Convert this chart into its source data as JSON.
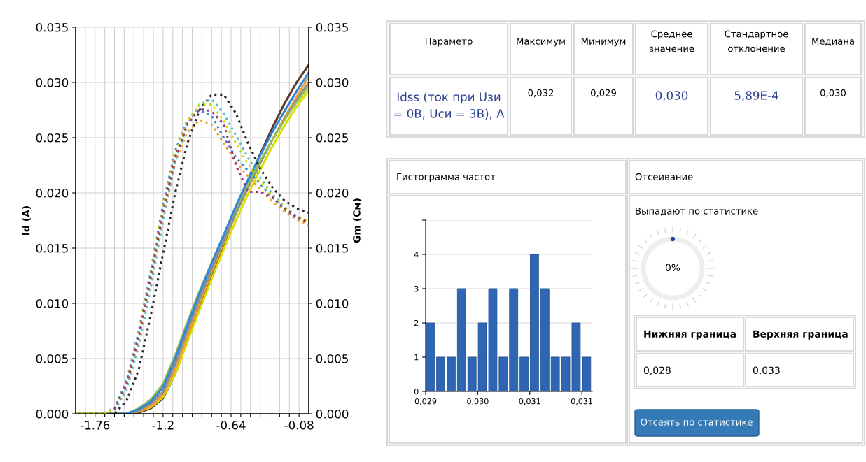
{
  "chart_data": [
    {
      "type": "line",
      "ylabel": "Id (A)",
      "y2label": "Gm (См)",
      "grid": true,
      "marker": "none",
      "x": [
        -1.92,
        -1.7,
        -1.6,
        -1.5,
        -1.4,
        -1.3,
        -1.2,
        -1.1,
        -1.0,
        -0.9,
        -0.8,
        -0.7,
        -0.6,
        -0.5,
        -0.4,
        -0.3,
        -0.2,
        -0.1,
        0
      ],
      "xlim": [
        -1.92,
        0
      ],
      "xticks": [
        {
          "value": -1.84,
          "label": null
        },
        {
          "value": -1.76,
          "label": "-1.76"
        },
        {
          "value": -1.68,
          "label": null
        },
        {
          "value": -1.6,
          "label": null
        },
        {
          "value": -1.52,
          "label": null
        },
        {
          "value": -1.44,
          "label": null
        },
        {
          "value": -1.36,
          "label": null
        },
        {
          "value": -1.28,
          "label": null
        },
        {
          "value": -1.2,
          "label": "-1.2"
        },
        {
          "value": -1.12,
          "label": null
        },
        {
          "value": -1.04,
          "label": null
        },
        {
          "value": -0.96,
          "label": null
        },
        {
          "value": -0.88,
          "label": null
        },
        {
          "value": -0.8,
          "label": null
        },
        {
          "value": -0.72,
          "label": null
        },
        {
          "value": -0.64,
          "label": "-0.64"
        },
        {
          "value": -0.56,
          "label": null
        },
        {
          "value": -0.48,
          "label": null
        },
        {
          "value": -0.4,
          "label": null
        },
        {
          "value": -0.32,
          "label": null
        },
        {
          "value": -0.24,
          "label": null
        },
        {
          "value": -0.16,
          "label": null
        },
        {
          "value": -0.08,
          "label": "-0.08"
        }
      ],
      "ylim": [
        0,
        0.035
      ],
      "yticks": [
        {
          "value": 0,
          "label": "0.000"
        },
        {
          "value": 0.005,
          "label": "0.005"
        },
        {
          "value": 0.01,
          "label": "0.010"
        },
        {
          "value": 0.015,
          "label": "0.015"
        },
        {
          "value": 0.02,
          "label": "0.020"
        },
        {
          "value": 0.025,
          "label": "0.025"
        },
        {
          "value": 0.03,
          "label": "0.030"
        },
        {
          "value": 0.035,
          "label": "0.035"
        }
      ],
      "y2lim": [
        0,
        0.035
      ],
      "y2ticks": [
        {
          "value": 0,
          "label": "0.000"
        },
        {
          "value": 0.005,
          "label": "0.005"
        },
        {
          "value": 0.01,
          "label": "0.010"
        },
        {
          "value": 0.015,
          "label": "0.015"
        },
        {
          "value": 0.02,
          "label": "0.020"
        },
        {
          "value": 0.025,
          "label": "0.025"
        },
        {
          "value": 0.03,
          "label": "0.030"
        },
        {
          "value": 0.035,
          "label": "0.035"
        }
      ],
      "series": [
        {
          "color": "#5b3a29",
          "line_style": "solid",
          "values": [
            0,
            0,
            0,
            0,
            0.0001,
            0.0005,
            0.0014,
            0.0036,
            0.0066,
            0.0096,
            0.0125,
            0.0154,
            0.0182,
            0.0209,
            0.0235,
            0.0259,
            0.0281,
            0.03,
            0.0316
          ]
        },
        {
          "color": "#d4e000",
          "line_style": "solid",
          "values": [
            0,
            0,
            0,
            0,
            0.0002,
            0.0006,
            0.0015,
            0.0036,
            0.0065,
            0.0094,
            0.0122,
            0.0149,
            0.0175,
            0.0199,
            0.0221,
            0.0242,
            0.0261,
            0.0278,
            0.0293
          ]
        },
        {
          "color": "#f0a030",
          "line_style": "solid",
          "values": [
            null,
            null,
            null,
            0,
            0.0002,
            0.0007,
            0.0017,
            0.004,
            0.007,
            0.01,
            0.0128,
            0.0155,
            0.0181,
            0.0205,
            0.0227,
            0.0248,
            0.0268,
            0.0287,
            0.0305
          ]
        },
        {
          "color": "#8c8c8c",
          "line_style": "solid",
          "values": [
            0,
            0,
            0,
            0,
            0.0003,
            0.0009,
            0.002,
            0.0045,
            0.0075,
            0.0104,
            0.0131,
            0.0157,
            0.0182,
            0.0205,
            0.0227,
            0.0248,
            0.0267,
            0.0284,
            0.03
          ]
        },
        {
          "color": "#9bbb59",
          "line_style": "solid",
          "values": [
            0,
            0,
            0,
            0,
            0.0005,
            0.0013,
            0.0027,
            0.0053,
            0.0083,
            0.0111,
            0.0137,
            0.0162,
            0.0186,
            0.0208,
            0.0229,
            0.0248,
            0.0266,
            0.0282,
            0.0297
          ]
        },
        {
          "color": "#2e86d6",
          "line_style": "solid",
          "values": [
            null,
            null,
            0,
            0,
            0.0004,
            0.0011,
            0.0024,
            0.005,
            0.008,
            0.0109,
            0.0136,
            0.0162,
            0.0188,
            0.0212,
            0.0234,
            0.0255,
            0.0274,
            0.0292,
            0.0309
          ]
        },
        {
          "color": "#262626",
          "line_style": "dotted",
          "axis": "y2",
          "values": [
            0,
            0,
            0,
            0.0012,
            0.004,
            0.009,
            0.0145,
            0.02,
            0.0245,
            0.0275,
            0.0289,
            0.0289,
            0.0272,
            0.0245,
            0.0222,
            0.0205,
            0.0193,
            0.0186,
            0.0182
          ]
        },
        {
          "color": "#2e86d6",
          "line_style": "dotted",
          "axis": "y2",
          "values": [
            0,
            0,
            0.0005,
            0.003,
            0.0075,
            0.013,
            0.019,
            0.0238,
            0.0266,
            0.0275,
            0.027,
            0.025,
            0.0232,
            0.022,
            0.0208,
            0.0196,
            0.0185,
            0.0177,
            0.0172
          ]
        },
        {
          "color": "#4bc0c0",
          "line_style": "dotted",
          "axis": "y2",
          "values": [
            0,
            0,
            0.0003,
            0.0022,
            0.0062,
            0.0115,
            0.0175,
            0.0228,
            0.0262,
            0.028,
            0.0285,
            0.0272,
            0.0252,
            0.0232,
            0.0214,
            0.0199,
            0.0187,
            0.0179,
            0.0174
          ]
        },
        {
          "color": "#f0a030",
          "line_style": "dotted",
          "axis": "y2",
          "values": [
            0,
            0,
            0.0004,
            0.0026,
            0.0068,
            0.0122,
            0.018,
            0.0228,
            0.0255,
            0.0266,
            0.0262,
            0.0245,
            0.0228,
            0.0215,
            0.0203,
            0.0192,
            0.0183,
            0.0176,
            0.0171
          ]
        },
        {
          "color": "#c8e000",
          "line_style": "dotted",
          "axis": "y2",
          "values": [
            0,
            0,
            0.0004,
            0.0028,
            0.0072,
            0.0128,
            0.0186,
            0.0235,
            0.0265,
            0.028,
            0.028,
            0.0265,
            0.0245,
            0.0226,
            0.021,
            0.0197,
            0.0187,
            0.0179,
            0.0174
          ]
        },
        {
          "color": "#a0307a",
          "line_style": "dotted",
          "axis": "y2",
          "values": [
            null,
            null,
            0.0004,
            0.0027,
            0.007,
            0.0125,
            0.0183,
            0.0232,
            0.0262,
            0.0276,
            0.0274,
            0.0262,
            0.0225,
            0.0201,
            0.0201,
            0.0196,
            0.0186,
            0.0178,
            0.0173
          ]
        }
      ]
    },
    {
      "type": "other",
      "annotations": [
        "Параметр",
        "Максимум",
        "Минимум",
        "Среднее\nзначение",
        "Стандартное\nотклонение",
        "Медиана",
        "Idss (ток при Uзи\n= 0В, Uси = 3В), А",
        "0,032",
        "0,029",
        "0,030",
        "5,89E-4",
        "0,030"
      ]
    },
    {
      "type": "histogram",
      "title": "Гистограмма частот",
      "color": "#2f66b3",
      "grid": "y",
      "bins": [
        0.029,
        0.02916,
        0.02932,
        0.02948,
        0.02964,
        0.0298,
        0.02996,
        0.03012,
        0.03028,
        0.03044,
        0.0306,
        0.03076,
        0.03092,
        0.03108,
        0.03124,
        0.0314,
        0.03156
      ],
      "values": [
        2,
        1,
        1,
        3,
        1,
        2,
        3,
        1,
        3,
        1,
        4,
        3,
        1,
        1,
        2,
        1
      ],
      "xlim": [
        0.029,
        0.03156
      ],
      "xticks": [
        {
          "value": 0.029,
          "label": "0,029"
        },
        {
          "value": 0.0298,
          "label": "0,030"
        },
        {
          "value": 0.0306,
          "label": "0,031"
        },
        {
          "value": 0.0314,
          "label": "0,031"
        }
      ],
      "ylim": [
        0,
        5
      ],
      "yticks": [
        0,
        1,
        2,
        3,
        4,
        {
          "value": 5,
          "label": null
        }
      ]
    },
    {
      "type": "other",
      "title": "Отсеивание",
      "subtitle": "Выпадают по статистике",
      "annotations": [
        "0%",
        "Нижняя граница",
        "Верхняя граница",
        "0,028",
        "0,033",
        "Отсеять по статистике"
      ]
    }
  ]
}
